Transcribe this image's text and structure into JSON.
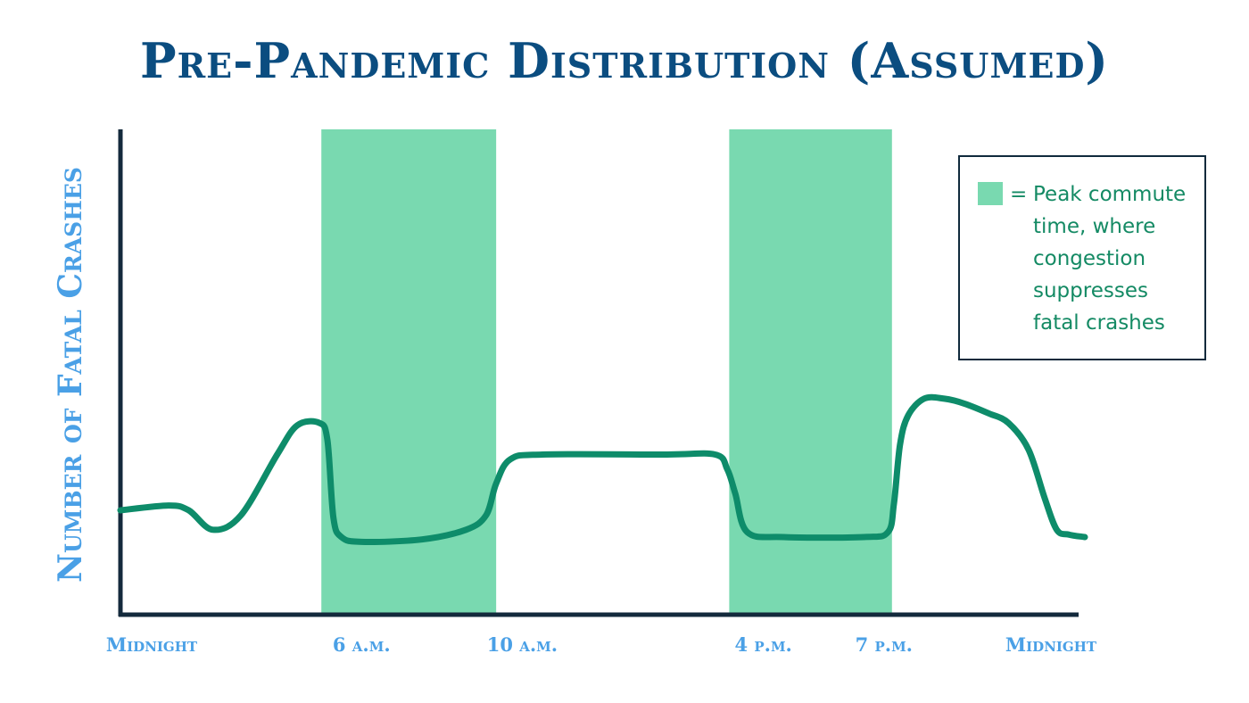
{
  "chart_data": {
    "type": "line",
    "title": "Pre-Pandemic Distribution (Assumed)",
    "ylabel": "Number of Fatal Crashes",
    "xlabel": "",
    "xlim": [
      0,
      24
    ],
    "ylim": [
      0,
      100
    ],
    "x_ticks": [
      {
        "label": "Midnight",
        "value": 0
      },
      {
        "label": "6 a.m.",
        "value": 6
      },
      {
        "label": "10 a.m.",
        "value": 10
      },
      {
        "label": "4 p.m.",
        "value": 16
      },
      {
        "label": "7 p.m.",
        "value": 19
      },
      {
        "label": "Midnight",
        "value": 24
      }
    ],
    "highlight_bands": [
      {
        "start": 5,
        "end": 9.35
      },
      {
        "start": 15.15,
        "end": 19.2
      }
    ],
    "series": [
      {
        "x": [
          0,
          1.2,
          1.7,
          2.3,
          3.0,
          3.9,
          4.4,
          4.95,
          5.15,
          5.3,
          5.5,
          6.0,
          7.5,
          8.6,
          9.1,
          9.35,
          9.7,
          10.5,
          13.5,
          14.8,
          15.1,
          15.3,
          15.6,
          16.5,
          18.5,
          19.1,
          19.25,
          19.4,
          19.6,
          20.0,
          20.5,
          21.0,
          21.6,
          22.1,
          22.6,
          23.0,
          23.3,
          23.6,
          24.0
        ],
        "values": [
          21.5,
          22.5,
          21.5,
          17.5,
          20.5,
          33,
          39,
          39.5,
          36,
          20,
          16,
          15,
          15.5,
          17.5,
          20.5,
          27,
          32,
          33,
          33,
          33,
          30,
          25,
          17,
          16,
          16,
          17,
          23,
          35,
          41,
          44.5,
          44.5,
          43.5,
          41.5,
          39.5,
          34,
          24,
          17.5,
          16.5,
          16
        ]
      }
    ],
    "legend": {
      "symbol": "=",
      "text": "Peak commute\ntime, where\ncongestion\nsuppresses\nfatal crashes",
      "placement": "top-right"
    },
    "grid": false,
    "colors": {
      "line": "#0e8c6a",
      "band": "#79d9b0",
      "axis": "#142a3c",
      "title": "#0b4d80",
      "labels": "#4aa0e6",
      "legend_text": "#148a64"
    }
  }
}
